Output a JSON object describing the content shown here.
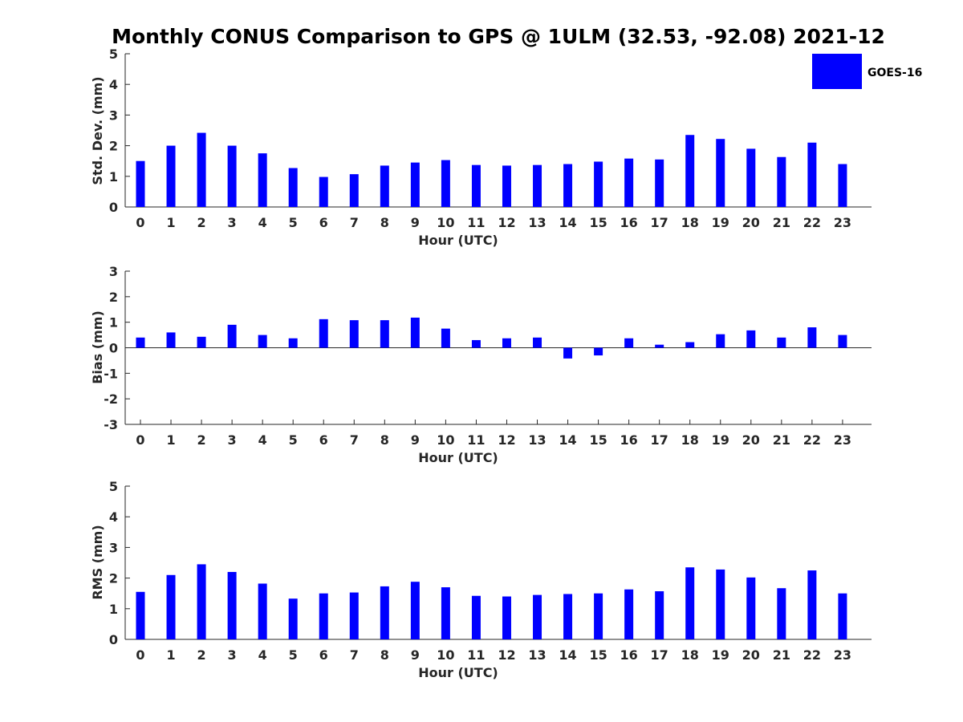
{
  "title": "Monthly CONUS Comparison to GPS @ 1ULM (32.53, -92.08) 2021-12",
  "legend": {
    "label": "GOES-16",
    "color": "#0000ff"
  },
  "chart_data": [
    {
      "type": "bar",
      "xlabel": "Hour (UTC)",
      "ylabel": "Std. Dev. (mm)",
      "ylim": [
        0,
        5
      ],
      "yticks": [
        "0",
        "1",
        "2",
        "3",
        "4",
        "5"
      ],
      "categories": [
        "0",
        "1",
        "2",
        "3",
        "4",
        "5",
        "6",
        "7",
        "8",
        "9",
        "10",
        "11",
        "12",
        "13",
        "14",
        "15",
        "16",
        "17",
        "18",
        "19",
        "20",
        "21",
        "22",
        "23"
      ],
      "series": [
        {
          "name": "GOES-16",
          "color": "#0000ff",
          "values": [
            1.5,
            2.0,
            2.42,
            2.0,
            1.75,
            1.27,
            0.98,
            1.07,
            1.35,
            1.45,
            1.53,
            1.37,
            1.35,
            1.37,
            1.4,
            1.48,
            1.58,
            1.55,
            2.35,
            2.22,
            1.9,
            1.63,
            2.1,
            1.4
          ]
        }
      ]
    },
    {
      "type": "bar",
      "xlabel": "Hour (UTC)",
      "ylabel": "Bias (mm)",
      "ylim": [
        -3,
        3
      ],
      "yticks": [
        "-3",
        "-2",
        "-1",
        "0",
        "1",
        "2",
        "3"
      ],
      "categories": [
        "0",
        "1",
        "2",
        "3",
        "4",
        "5",
        "6",
        "7",
        "8",
        "9",
        "10",
        "11",
        "12",
        "13",
        "14",
        "15",
        "16",
        "17",
        "18",
        "19",
        "20",
        "21",
        "22",
        "23"
      ],
      "series": [
        {
          "name": "GOES-16",
          "color": "#0000ff",
          "values": [
            0.4,
            0.6,
            0.43,
            0.9,
            0.5,
            0.37,
            1.12,
            1.08,
            1.08,
            1.18,
            0.75,
            0.3,
            0.37,
            0.4,
            -0.42,
            -0.3,
            0.37,
            0.12,
            0.22,
            0.53,
            0.68,
            0.4,
            0.8,
            0.5
          ]
        }
      ]
    },
    {
      "type": "bar",
      "xlabel": "Hour (UTC)",
      "ylabel": "RMS (mm)",
      "ylim": [
        0,
        5
      ],
      "yticks": [
        "0",
        "1",
        "2",
        "3",
        "4",
        "5"
      ],
      "categories": [
        "0",
        "1",
        "2",
        "3",
        "4",
        "5",
        "6",
        "7",
        "8",
        "9",
        "10",
        "11",
        "12",
        "13",
        "14",
        "15",
        "16",
        "17",
        "18",
        "19",
        "20",
        "21",
        "22",
        "23"
      ],
      "series": [
        {
          "name": "GOES-16",
          "color": "#0000ff",
          "values": [
            1.55,
            2.1,
            2.45,
            2.2,
            1.82,
            1.33,
            1.5,
            1.53,
            1.73,
            1.88,
            1.7,
            1.42,
            1.4,
            1.45,
            1.48,
            1.5,
            1.63,
            1.57,
            2.35,
            2.28,
            2.02,
            1.67,
            2.25,
            1.5
          ]
        }
      ]
    }
  ]
}
